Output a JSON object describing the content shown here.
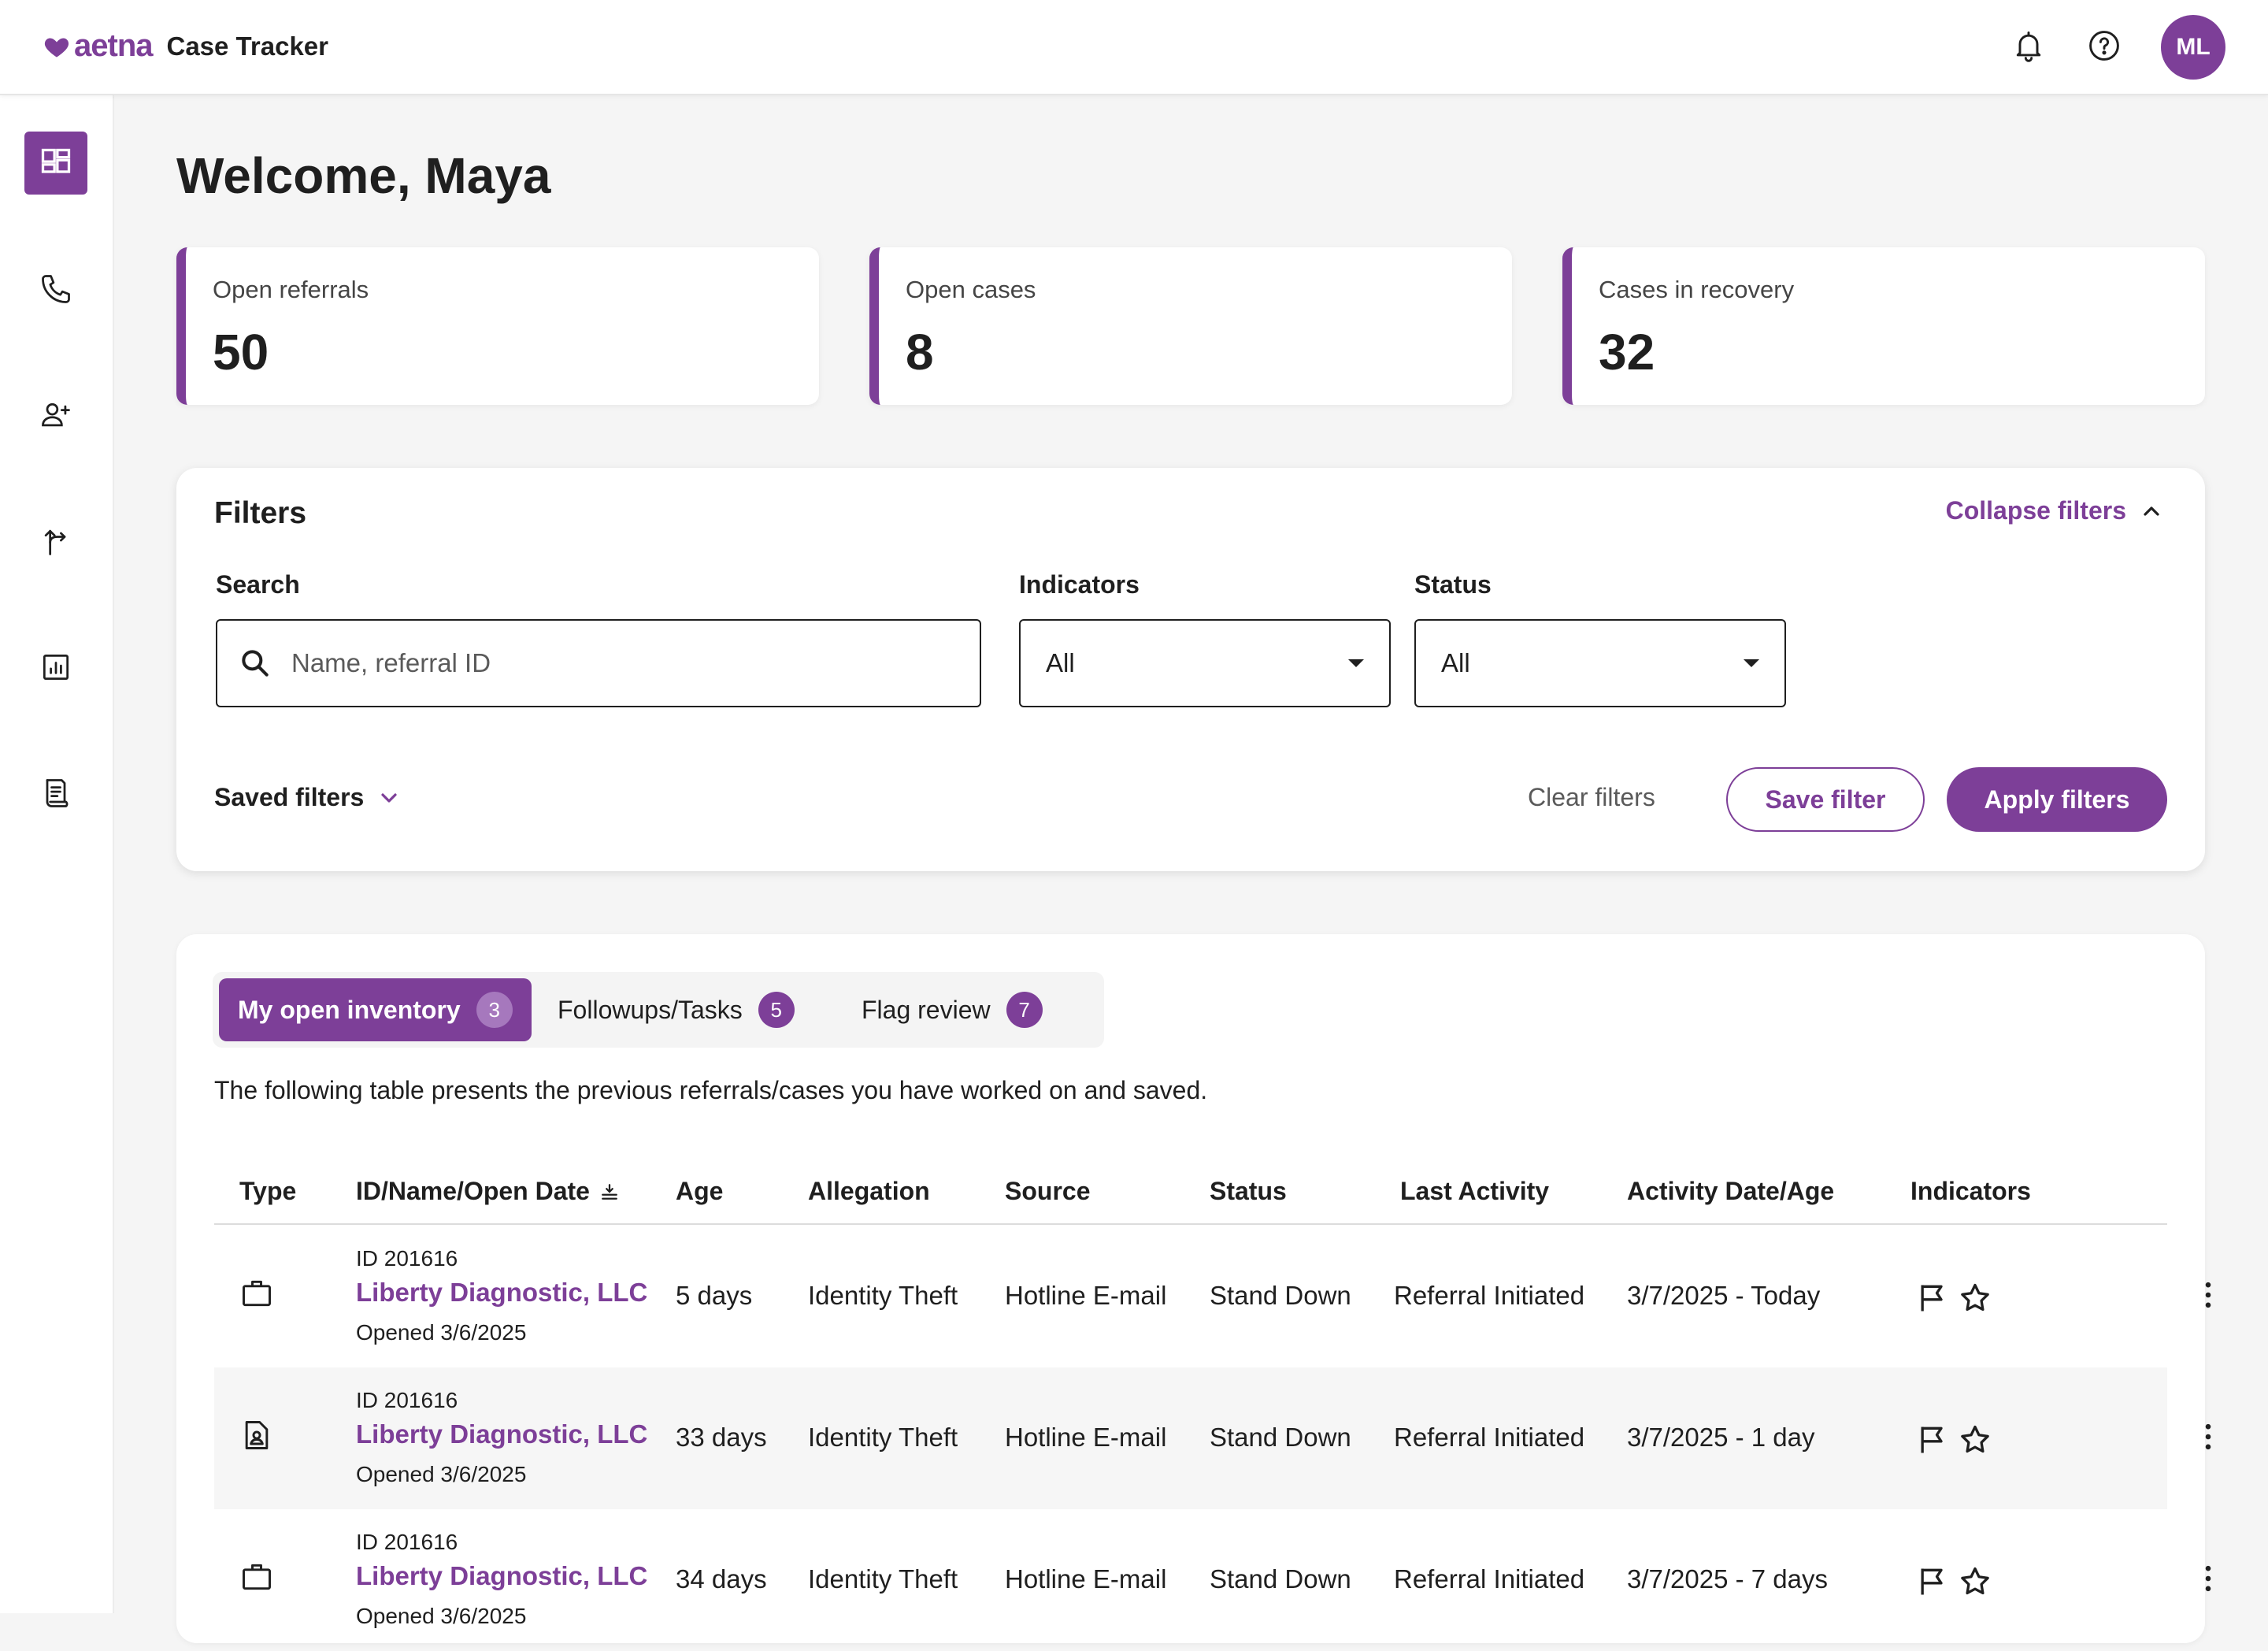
{
  "header": {
    "logo_text": "aetna",
    "app_name": "Case Tracker",
    "avatar_initials": "ML",
    "icons": [
      "bell-icon",
      "help-icon"
    ]
  },
  "sidebar": {
    "items": [
      {
        "name": "dashboard-icon",
        "active": true
      },
      {
        "name": "phone-icon",
        "active": false
      },
      {
        "name": "add-user-icon",
        "active": false
      },
      {
        "name": "route-icon",
        "active": false
      },
      {
        "name": "report-chart-icon",
        "active": false
      },
      {
        "name": "document-icon",
        "active": false
      }
    ]
  },
  "welcome": "Welcome, Maya",
  "stats": [
    {
      "label": "Open referrals",
      "value": "50"
    },
    {
      "label": "Open cases",
      "value": "8"
    },
    {
      "label": "Cases in recovery",
      "value": "32"
    }
  ],
  "filters": {
    "title": "Filters",
    "collapse_label": "Collapse filters",
    "search_label": "Search",
    "search_placeholder": "Name, referral ID",
    "indicators_label": "Indicators",
    "indicators_value": "All",
    "status_label": "Status",
    "status_value": "All",
    "saved_filters_label": "Saved filters",
    "clear_label": "Clear filters",
    "save_label": "Save filter",
    "apply_label": "Apply filters"
  },
  "inventory": {
    "tabs": [
      {
        "label": "My open inventory",
        "count": "3",
        "active": true
      },
      {
        "label": "Followups/Tasks",
        "count": "5",
        "active": false
      },
      {
        "label": "Flag review",
        "count": "7",
        "active": false
      }
    ],
    "description": "The following table presents the previous referrals/cases you have worked on and saved.",
    "columns": [
      "Type",
      "ID/Name/Open Date",
      "Age",
      "Allegation",
      "Source",
      "Status",
      "Last Activity",
      "Activity Date/Age",
      "Indicators"
    ],
    "rows": [
      {
        "type_icon": "briefcase-icon",
        "id": "ID 201616",
        "name": "Liberty Diagnostic, LLC",
        "opened": "Opened 3/6/2025",
        "age": "5 days",
        "allegation": "Identity Theft",
        "source": "Hotline E-mail",
        "status": "Stand Down",
        "last_activity": "Referral Initiated",
        "activity_date": "3/7/2025 - Today"
      },
      {
        "type_icon": "person-document-icon",
        "id": "ID 201616",
        "name": "Liberty Diagnostic, LLC",
        "opened": "Opened 3/6/2025",
        "age": "33 days",
        "allegation": "Identity Theft",
        "source": "Hotline E-mail",
        "status": "Stand Down",
        "last_activity": "Referral Initiated",
        "activity_date": "3/7/2025 - 1 day"
      },
      {
        "type_icon": "briefcase-icon",
        "id": "ID 201616",
        "name": "Liberty Diagnostic, LLC",
        "opened": "Opened 3/6/2025",
        "age": "34 days",
        "allegation": "Identity Theft",
        "source": "Hotline E-mail",
        "status": "Stand Down",
        "last_activity": "Referral Initiated",
        "activity_date": "3/7/2025 - 7 days"
      }
    ]
  },
  "colors": {
    "accent": "#7d3f98",
    "text": "#1f1f1f",
    "background": "#f5f5f5"
  }
}
